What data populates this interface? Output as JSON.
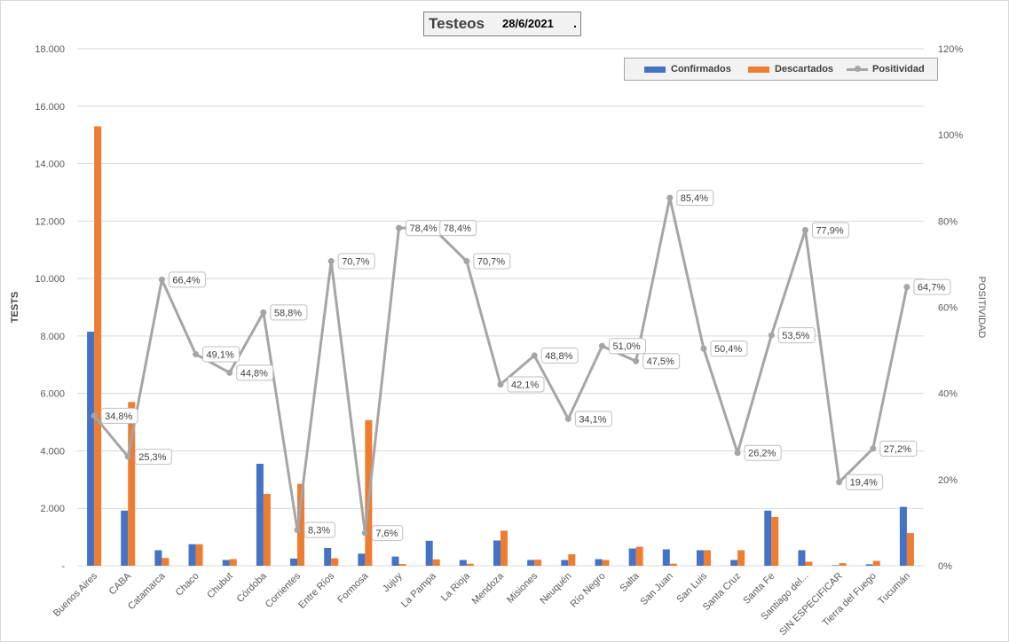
{
  "chart_data": {
    "type": "bar+line",
    "title": "Testeos",
    "title_date": "28/6/2021",
    "title_suffix": ".",
    "ylabel": "TESTS",
    "y2label": "POSITIVIDAD",
    "ylim": [
      0,
      18000
    ],
    "y2lim": [
      0,
      1.2
    ],
    "y_ticks": [
      "-",
      "2.000",
      "4.000",
      "6.000",
      "8.000",
      "10.000",
      "12.000",
      "14.000",
      "16.000",
      "18.000"
    ],
    "y2_ticks": [
      "0%",
      "20%",
      "40%",
      "60%",
      "80%",
      "100%",
      "120%"
    ],
    "grid": true,
    "legend_position": "top-right",
    "categories": [
      "Buenos Aires",
      "CABA",
      "Catamarca",
      "Chaco",
      "Chubut",
      "Córdoba",
      "Corrientes",
      "Entre Ríos",
      "Formosa",
      "Jujuy",
      "La Pampa",
      "La Rioja",
      "Mendoza",
      "Misiones",
      "Neuquén",
      "Río Negro",
      "Salta",
      "San Juan",
      "San Luis",
      "Santa Cruz",
      "Santa Fe",
      "Santiago del...",
      "SIN ESPECIFICAR",
      "Tierra del Fuego",
      "Tucumán"
    ],
    "series": [
      {
        "name": "Confirmados",
        "type": "bar",
        "axis": "left",
        "color": "#4472c4",
        "values": [
          8150,
          1920,
          540,
          750,
          200,
          3550,
          250,
          620,
          420,
          320,
          870,
          200,
          880,
          200,
          200,
          230,
          600,
          570,
          540,
          200,
          1920,
          540,
          20,
          50,
          2050
        ]
      },
      {
        "name": "Descartados",
        "type": "bar",
        "axis": "left",
        "color": "#ed7d31",
        "values": [
          15300,
          5700,
          270,
          750,
          230,
          2500,
          2850,
          260,
          5070,
          60,
          220,
          70,
          1220,
          210,
          400,
          200,
          660,
          70,
          540,
          540,
          1700,
          140,
          90,
          170,
          1140
        ]
      },
      {
        "name": "Positividad",
        "type": "line",
        "axis": "right",
        "color": "#a5a5a5",
        "values": [
          0.348,
          0.253,
          0.664,
          0.491,
          0.448,
          0.588,
          0.083,
          0.707,
          0.076,
          0.784,
          0.784,
          0.707,
          0.421,
          0.488,
          0.341,
          0.51,
          0.475,
          0.854,
          0.504,
          0.262,
          0.535,
          0.779,
          0.194,
          0.272,
          0.647
        ],
        "labels": [
          "34,8%",
          "25,3%",
          "66,4%",
          "49,1%",
          "44,8%",
          "58,8%",
          "8,3%",
          "70,7%",
          "7,6%",
          "78,4%",
          "78,4%",
          "70,7%",
          "42,1%",
          "48,8%",
          "34,1%",
          "51,0%",
          "47,5%",
          "85,4%",
          "50,4%",
          "26,2%",
          "53,5%",
          "77,9%",
          "19,4%",
          "27,2%",
          "64,7%"
        ]
      }
    ]
  },
  "legend": {
    "confirmados": "Confirmados",
    "descartados": "Descartados",
    "positividad": "Positividad"
  }
}
